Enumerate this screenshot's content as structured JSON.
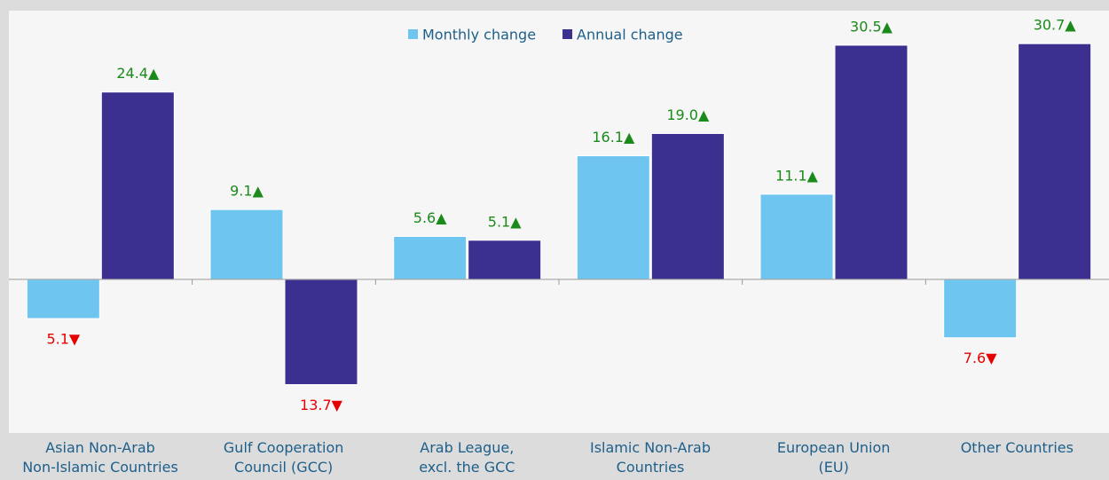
{
  "chart_data": {
    "type": "bar",
    "categories": [
      "Asian Non-Arab\nNon-Islamic Countries",
      "Gulf Cooperation\nCouncil (GCC)",
      "Arab League,\nexcl. the GCC",
      "Islamic Non-Arab\nCountries",
      "European Union\n(EU)",
      "Other Countries"
    ],
    "series": [
      {
        "name": "Monthly change",
        "color": "#6ec6f0",
        "values": [
          -5.1,
          9.1,
          5.6,
          16.1,
          11.1,
          -7.6
        ],
        "value_labels": [
          "5.1▼",
          "9.1▲",
          "5.6▲",
          "16.1▲",
          "11.1▲",
          "7.6▼"
        ]
      },
      {
        "name": "Annual change",
        "color": "#3b2f8f",
        "values": [
          24.4,
          -13.7,
          5.1,
          19.0,
          30.5,
          30.7
        ],
        "value_labels": [
          "24.4▲",
          "13.7▼",
          "5.1▲",
          "19.0▲",
          "30.5▲",
          "30.7▲"
        ]
      }
    ],
    "ylim": [
      -20,
      35
    ],
    "positive_label_color": "#1a8a1a",
    "negative_label_color": "#e60000",
    "legend": "top"
  }
}
